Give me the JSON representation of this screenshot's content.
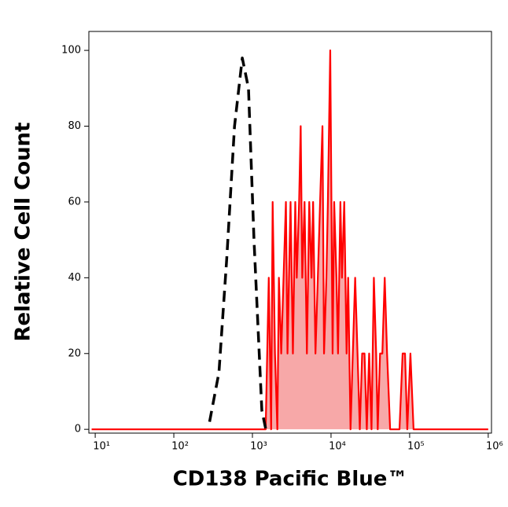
{
  "chart_data": {
    "type": "histogram-overlay",
    "xlabel": "CD138 Pacific Blue™",
    "ylabel": "Relative Cell Count",
    "xscale": "log",
    "xlim": [
      8.3,
      1100000
    ],
    "ylim": [
      -1,
      105
    ],
    "xticks": [
      {
        "value": 10,
        "label": "10¹"
      },
      {
        "value": 100,
        "label": "10²"
      },
      {
        "value": 1000,
        "label": "10³"
      },
      {
        "value": 10000,
        "label": "10⁴"
      },
      {
        "value": 100000,
        "label": "10⁵"
      },
      {
        "value": 1000000,
        "label": "10⁶"
      }
    ],
    "yticks": [
      0,
      20,
      40,
      60,
      80,
      100
    ],
    "series": [
      {
        "color": "#000000",
        "dashed": true,
        "filled": false,
        "x": [
          285,
          375,
          471,
          592,
          743,
          891,
          1047,
          1318,
          1480
        ],
        "values": [
          2,
          15,
          45,
          80,
          98,
          90,
          50,
          5,
          0
        ]
      },
      {
        "color": "#ff0000",
        "dashed": false,
        "filled": true,
        "fill": "#f7a8a8",
        "x": [
          9,
          1473,
          1614,
          1730,
          1808,
          1936,
          2075,
          2172,
          2324,
          2489,
          2667,
          2793,
          2917,
          3055,
          3273,
          3508,
          3664,
          3926,
          4111,
          4305,
          4603,
          4932,
          5284,
          5649,
          5916,
          6339,
          6792,
          7261,
          7780,
          8147,
          8730,
          9120,
          9772,
          10471,
          10965,
          11722,
          12274,
          13152,
          13772,
          14723,
          15776,
          16520,
          17701,
          18923,
          20277,
          21727,
          23227,
          24889,
          26669,
          28510,
          30549,
          32734,
          35075,
          37497,
          39264,
          42073,
          44978,
          48195,
          51642,
          56494,
          74302,
          81470,
          87297,
          93325,
          102329,
          112202,
          1000000
        ],
        "values": [
          0,
          0,
          40,
          0,
          60,
          20,
          0,
          40,
          20,
          40,
          60,
          20,
          40,
          60,
          20,
          60,
          40,
          60,
          80,
          40,
          60,
          20,
          60,
          40,
          60,
          20,
          40,
          60,
          80,
          20,
          40,
          60,
          100,
          20,
          60,
          40,
          20,
          60,
          40,
          60,
          20,
          40,
          0,
          20,
          40,
          20,
          0,
          20,
          20,
          0,
          20,
          0,
          40,
          20,
          0,
          20,
          20,
          40,
          20,
          0,
          0,
          20,
          20,
          0,
          20,
          0,
          0
        ]
      }
    ]
  }
}
